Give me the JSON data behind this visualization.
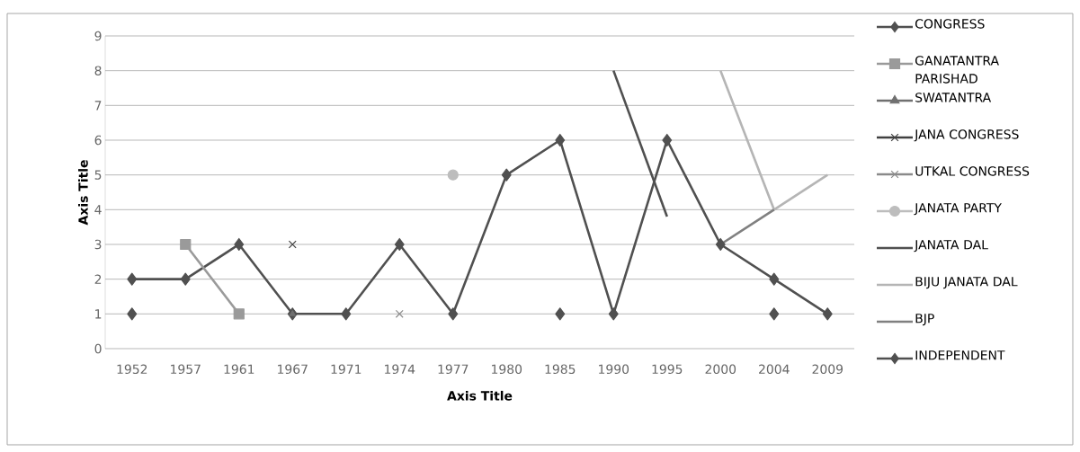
{
  "chart_data": {
    "type": "line",
    "xlabel": "Axis Title",
    "ylabel": "Axis Title",
    "categories": [
      "1952",
      "1957",
      "1961",
      "1967",
      "1971",
      "1974",
      "1977",
      "1980",
      "1985",
      "1990",
      "1995",
      "2000",
      "2004",
      "2009"
    ],
    "ylim": [
      0,
      9
    ],
    "yticks": [
      0,
      1,
      2,
      3,
      4,
      5,
      6,
      7,
      8,
      9
    ],
    "grid": "y",
    "legend": "right",
    "line_style": "solid",
    "series": [
      {
        "name": "CONGRESS",
        "color": "#505050",
        "marker": "diamond",
        "values": [
          2,
          2,
          3,
          1,
          1,
          3,
          1,
          5,
          6,
          1,
          6,
          3,
          2,
          1
        ]
      },
      {
        "name": "GANATANTRA PARISHAD",
        "color": "#9a9a9a",
        "marker": "square",
        "values": [
          null,
          3,
          1,
          null,
          null,
          null,
          null,
          null,
          null,
          null,
          null,
          null,
          null,
          null
        ]
      },
      {
        "name": "SWATANTRA",
        "color": "#707070",
        "marker": "triangle",
        "values": [
          null,
          null,
          null,
          1,
          null,
          null,
          null,
          null,
          null,
          null,
          null,
          null,
          null,
          null
        ]
      },
      {
        "name": "JANA CONGRESS",
        "color": "#404040",
        "marker": "cross",
        "values": [
          null,
          null,
          null,
          3,
          null,
          null,
          null,
          null,
          null,
          null,
          null,
          null,
          null,
          null
        ]
      },
      {
        "name": "UTKAL CONGRESS",
        "color": "#8a8a8a",
        "marker": "cross",
        "values": [
          null,
          null,
          null,
          null,
          null,
          1,
          null,
          null,
          null,
          null,
          null,
          null,
          null,
          null
        ]
      },
      {
        "name": "JANATA PARTY",
        "color": "#bdbdbd",
        "marker": "circle",
        "values": [
          null,
          null,
          null,
          null,
          null,
          null,
          5,
          null,
          null,
          null,
          null,
          null,
          null,
          null
        ]
      },
      {
        "name": "JANATA DAL",
        "color": "#505050",
        "marker": "none",
        "values": [
          null,
          null,
          null,
          null,
          null,
          null,
          null,
          null,
          null,
          8,
          3.8,
          null,
          null,
          null
        ]
      },
      {
        "name": "BIJU JANATA DAL",
        "color": "#b5b5b5",
        "marker": "none",
        "values": [
          null,
          null,
          null,
          null,
          null,
          null,
          null,
          null,
          null,
          null,
          null,
          8,
          4,
          5
        ]
      },
      {
        "name": "BJP",
        "color": "#808080",
        "marker": "none",
        "values": [
          null,
          null,
          null,
          null,
          null,
          null,
          null,
          null,
          null,
          null,
          null,
          3,
          4,
          null
        ]
      },
      {
        "name": "INDEPENDENT",
        "color": "#505050",
        "marker": "diamond",
        "values": [
          1,
          null,
          null,
          null,
          null,
          null,
          null,
          null,
          1,
          null,
          null,
          null,
          1,
          null
        ]
      }
    ]
  }
}
